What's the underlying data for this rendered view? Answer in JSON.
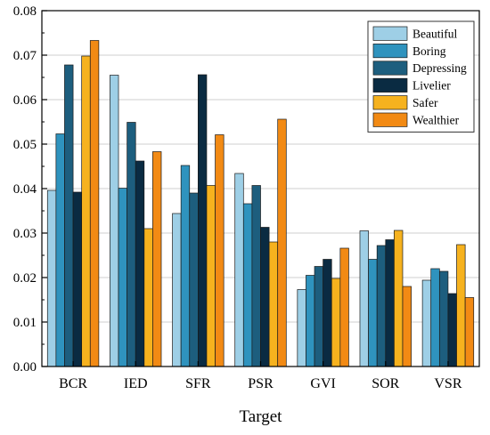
{
  "chart_data": {
    "type": "bar",
    "xlabel": "Target",
    "ylabel": "",
    "ylim": [
      0,
      0.08
    ],
    "yticks": [
      "0.00",
      "0.01",
      "0.02",
      "0.03",
      "0.04",
      "0.05",
      "0.06",
      "0.07",
      "0.08"
    ],
    "grid": "horizontal",
    "legend_position": "top-right",
    "categories": [
      "BCR",
      "IED",
      "SFR",
      "PSR",
      "GVI",
      "SOR",
      "VSR"
    ],
    "series": [
      {
        "name": "Beautiful",
        "color": "#9ECFE6",
        "values": [
          0.0396,
          0.0655,
          0.0344,
          0.0434,
          0.0173,
          0.0305,
          0.0194
        ]
      },
      {
        "name": "Boring",
        "color": "#2F93BE",
        "values": [
          0.0523,
          0.0401,
          0.0452,
          0.0366,
          0.0205,
          0.0241,
          0.022
        ]
      },
      {
        "name": "Depressing",
        "color": "#1D5E7E",
        "values": [
          0.0678,
          0.0549,
          0.039,
          0.0407,
          0.0225,
          0.0272,
          0.0214
        ]
      },
      {
        "name": "Livelier",
        "color": "#0A2B42",
        "values": [
          0.0392,
          0.0462,
          0.0656,
          0.0313,
          0.0241,
          0.0285,
          0.0164
        ]
      },
      {
        "name": "Safer",
        "color": "#F6B21E",
        "values": [
          0.0698,
          0.031,
          0.0407,
          0.028,
          0.0198,
          0.0306,
          0.0274
        ]
      },
      {
        "name": "Wealthier",
        "color": "#F28A14",
        "values": [
          0.0733,
          0.0483,
          0.0521,
          0.0556,
          0.0266,
          0.018,
          0.0155
        ]
      }
    ]
  }
}
